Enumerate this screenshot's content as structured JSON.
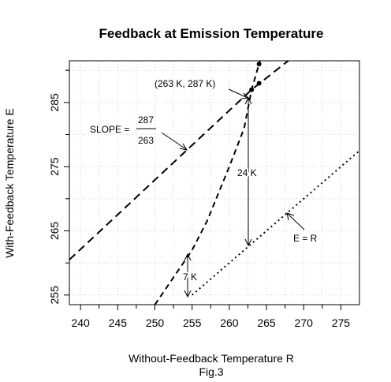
{
  "chart_data": {
    "type": "line",
    "title": "Feedback at Emission Temperature",
    "xlabel": "Without-Feedback Temperature R",
    "ylabel": "With-Feedback Temperature E",
    "caption": "Fig.3",
    "xlim": [
      238.5,
      277.5
    ],
    "ylim": [
      253.5,
      291.5
    ],
    "x_ticks": [
      240,
      245,
      250,
      255,
      260,
      265,
      270,
      275
    ],
    "y_ticks": [
      255,
      265,
      275,
      285
    ],
    "grid": true,
    "series": [
      {
        "style": "dashed-long",
        "points": [
          [
            238.5,
            260.5
          ],
          [
            263,
            287
          ],
          [
            270,
            293.4
          ]
        ]
      },
      {
        "style": "dashed",
        "points": [
          [
            250,
            253.5
          ],
          [
            255,
            262
          ],
          [
            257,
            266.5
          ],
          [
            260,
            275
          ],
          [
            262,
            281
          ],
          [
            263,
            287
          ],
          [
            264.5,
            293
          ]
        ]
      },
      {
        "style": "dotted",
        "points": [
          [
            255,
            255
          ],
          [
            277.5,
            277.5
          ]
        ]
      }
    ],
    "points": [
      {
        "x": 263,
        "y": 287
      },
      {
        "x": 264,
        "y": 288
      },
      {
        "x": 264,
        "y": 291
      }
    ],
    "annotations": {
      "point_label": "(263 K, 287 K)",
      "slope_text": "SLOPE =",
      "slope_num": "287",
      "slope_den": "263",
      "gap_24": "24 K",
      "gap_7": "7 K",
      "identity": "E = R"
    }
  }
}
